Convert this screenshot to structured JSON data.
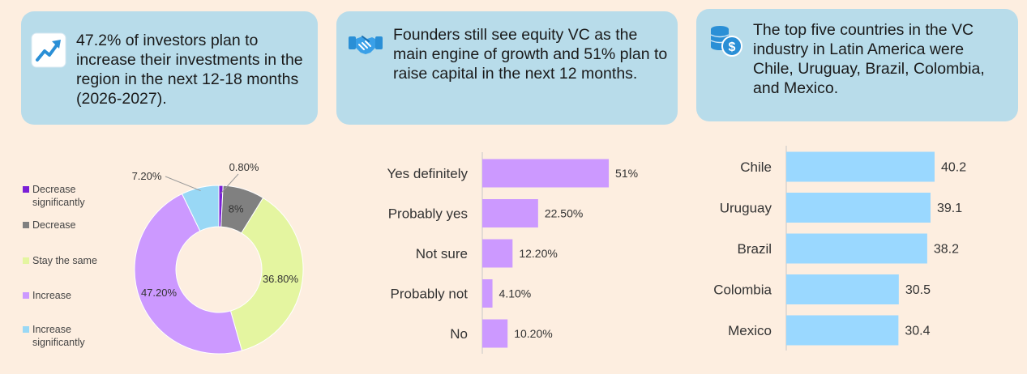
{
  "cards": [
    {
      "icon": "trend-up-icon",
      "text": "47.2% of investors plan to increase their investments in the region in the next 12-18 months (2026-2027)."
    },
    {
      "icon": "handshake-icon",
      "text": "Founders still see equity VC as the main engine of growth and 51% plan to raise capital in the next 12 months."
    },
    {
      "icon": "coins-icon",
      "text": "The top five countries in the VC industry in Latin America were Chile, Uruguay, Brazil, Colombia, and Mexico."
    }
  ],
  "colors": {
    "background": "#fdeee0",
    "card": "#b8dcea",
    "icon_blue": "#2a8fd6",
    "violet": "#cc99ff",
    "country_bar": "#9ad8ff"
  },
  "chart_data": [
    {
      "type": "pie",
      "donut": true,
      "categories": [
        "Decrease significantly",
        "Decrease",
        "Stay the same",
        "Increase",
        "Increase significantly"
      ],
      "values": [
        0.8,
        8.0,
        36.8,
        47.2,
        7.2
      ],
      "data_labels": [
        "0.80%",
        "8%",
        "36.80%",
        "47.20%",
        "7.20%"
      ],
      "colors": [
        "#7a1fd6",
        "#808080",
        "#e4f5a0",
        "#cc99ff",
        "#99d8f5"
      ],
      "legend": "left"
    },
    {
      "type": "bar",
      "orientation": "horizontal",
      "categories": [
        "Yes definitely",
        "Probably yes",
        "Not sure",
        "Probably not",
        "No"
      ],
      "values": [
        51,
        22.5,
        12.2,
        4.1,
        10.2
      ],
      "data_labels": [
        "51%",
        "22.50%",
        "12.20%",
        "4.10%",
        "10.20%"
      ],
      "color": "#cc99ff"
    },
    {
      "type": "bar",
      "orientation": "horizontal",
      "categories": [
        "Chile",
        "Uruguay",
        "Brazil",
        "Colombia",
        "Mexico"
      ],
      "values": [
        40.2,
        39.1,
        38.2,
        30.5,
        30.4
      ],
      "data_labels": [
        "40.2",
        "39.1",
        "38.2",
        "30.5",
        "30.4"
      ],
      "color": "#9ad8ff"
    }
  ]
}
